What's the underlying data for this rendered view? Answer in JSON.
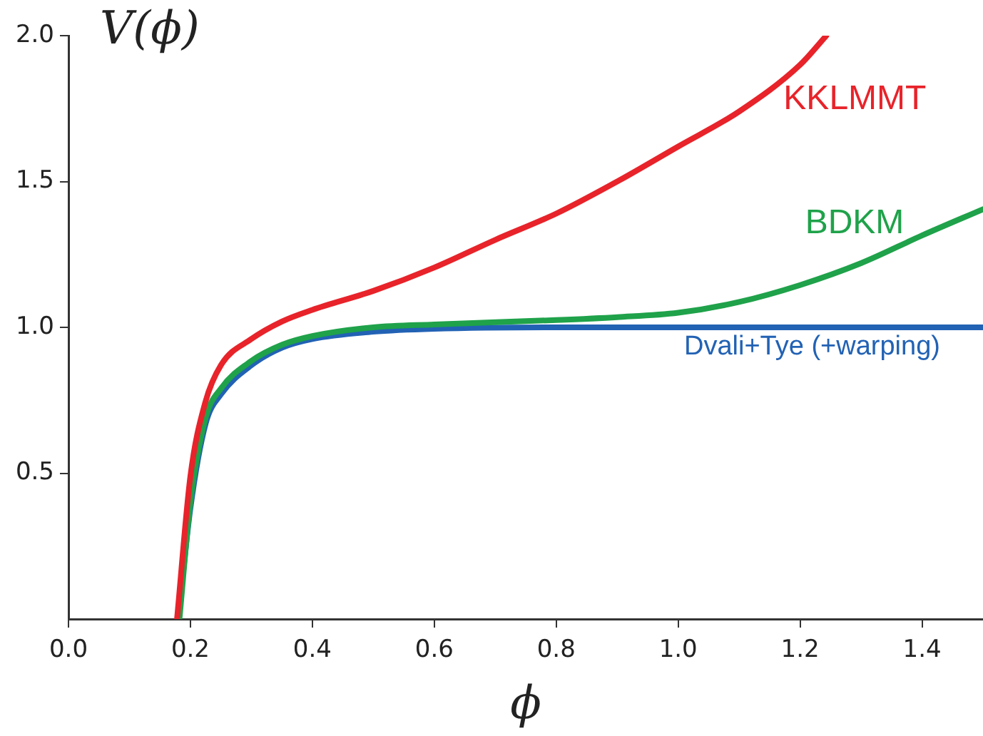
{
  "chart_data": {
    "type": "line",
    "xlabel": "ϕ",
    "ylabel": "V(ϕ)",
    "xlim": [
      0,
      1.5
    ],
    "ylim": [
      0,
      2
    ],
    "xticks": [
      {
        "value": 0,
        "label": "0.0"
      },
      0.2,
      0.4,
      0.6,
      0.8,
      {
        "value": 1,
        "label": "1.0"
      },
      1.2,
      1.4
    ],
    "yticks": [
      0.5,
      {
        "value": 1,
        "label": "1.0"
      },
      1.5,
      {
        "value": 2,
        "label": "2.0"
      }
    ],
    "grid": false,
    "legend": false,
    "marker": "none",
    "line_style": "solid",
    "series": [
      {
        "name": "KKLMMT",
        "color": "#e8232a",
        "x": [
          0.178,
          0.2,
          0.224,
          0.25,
          0.3,
          0.35,
          0.4,
          0.5,
          0.6,
          0.7,
          0.8,
          0.9,
          1.0,
          1.1,
          1.2,
          1.243
        ],
        "values": [
          0,
          0.49,
          0.74,
          0.87,
          0.96,
          1.02,
          1.06,
          1.125,
          1.205,
          1.3,
          1.39,
          1.5,
          1.62,
          1.74,
          1.9,
          2.0
        ]
      },
      {
        "name": "BDKM",
        "color": "#1fa24a",
        "x": [
          0.182,
          0.2,
          0.225,
          0.25,
          0.3,
          0.35,
          0.4,
          0.5,
          0.6,
          0.8,
          0.9,
          1.0,
          1.1,
          1.2,
          1.3,
          1.4,
          1.5
        ],
        "values": [
          0,
          0.4,
          0.69,
          0.79,
          0.885,
          0.94,
          0.97,
          1.0,
          1.01,
          1.025,
          1.035,
          1.05,
          1.087,
          1.145,
          1.22,
          1.315,
          1.405
        ]
      },
      {
        "name": "Dvali+Tye (+warping)",
        "color": "#2262b4",
        "x": [
          0.18,
          0.2,
          0.225,
          0.25,
          0.3,
          0.35,
          0.4,
          0.5,
          0.6,
          0.8,
          1.0,
          1.5
        ],
        "values": [
          0,
          0.38,
          0.67,
          0.77,
          0.87,
          0.93,
          0.96,
          0.985,
          0.995,
          1.0,
          1.0,
          1.0
        ]
      }
    ]
  }
}
